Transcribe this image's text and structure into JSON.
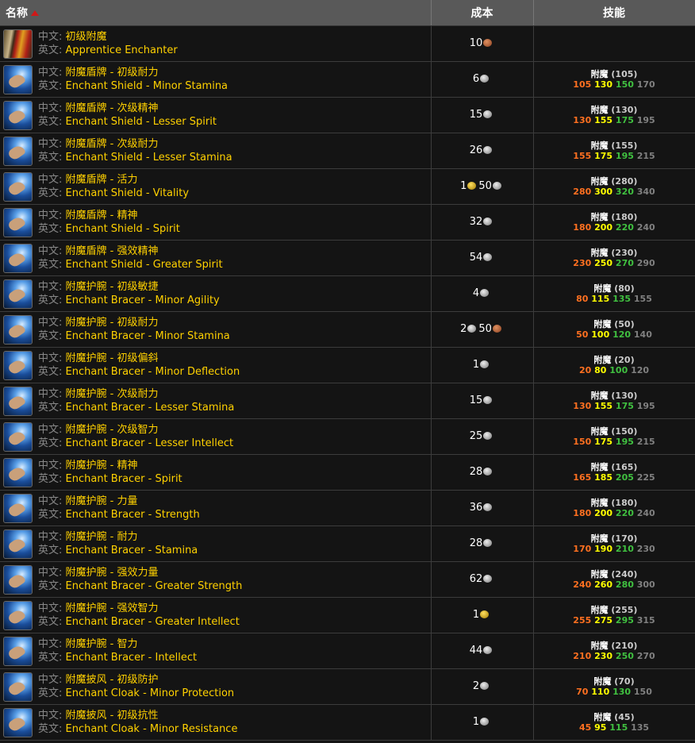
{
  "header": {
    "name": "名称",
    "cost": "成本",
    "skill": "技能"
  },
  "labels": {
    "cn": "中文:",
    "en": "英文:"
  },
  "coin_colors": {
    "copper": "#b05a30",
    "silver": "#aaaaaa",
    "gold": "#e0b020"
  },
  "skill_colors": {
    "orange": "#ff7020",
    "yellow": "#ffff00",
    "green": "#40c040",
    "gray": "#808080"
  },
  "rows": [
    {
      "icon": "apprentice-enchanter-icon",
      "cn": "初级附魔",
      "en": "Apprentice Enchanter",
      "cost": [
        {
          "n": "10",
          "coin": "copper"
        }
      ],
      "skill": null
    },
    {
      "icon": "enchant-hand-icon",
      "cn": "附魔盾牌 - 初级耐力",
      "en": "Enchant Shield - Minor Stamina",
      "cost": [
        {
          "n": "6",
          "coin": "silver"
        }
      ],
      "skill": {
        "name": "附魔",
        "req": "(105)",
        "lv": [
          "105",
          "130",
          "150",
          "170"
        ]
      }
    },
    {
      "icon": "enchant-hand-icon",
      "cn": "附魔盾牌 - 次级精神",
      "en": "Enchant Shield - Lesser Spirit",
      "cost": [
        {
          "n": "15",
          "coin": "silver"
        }
      ],
      "skill": {
        "name": "附魔",
        "req": "(130)",
        "lv": [
          "130",
          "155",
          "175",
          "195"
        ]
      }
    },
    {
      "icon": "enchant-hand-icon",
      "cn": "附魔盾牌 - 次级耐力",
      "en": "Enchant Shield - Lesser Stamina",
      "cost": [
        {
          "n": "26",
          "coin": "silver"
        }
      ],
      "skill": {
        "name": "附魔",
        "req": "(155)",
        "lv": [
          "155",
          "175",
          "195",
          "215"
        ]
      }
    },
    {
      "icon": "enchant-hand-icon",
      "cn": "附魔盾牌 - 活力",
      "en": "Enchant Shield - Vitality",
      "cost": [
        {
          "n": "1",
          "coin": "gold"
        },
        {
          "n": "50",
          "coin": "silver"
        }
      ],
      "skill": {
        "name": "附魔",
        "req": "(280)",
        "lv": [
          "280",
          "300",
          "320",
          "340"
        ]
      }
    },
    {
      "icon": "enchant-hand-icon",
      "cn": "附魔盾牌 - 精神",
      "en": "Enchant Shield - Spirit",
      "cost": [
        {
          "n": "32",
          "coin": "silver"
        }
      ],
      "skill": {
        "name": "附魔",
        "req": "(180)",
        "lv": [
          "180",
          "200",
          "220",
          "240"
        ]
      }
    },
    {
      "icon": "enchant-hand-icon",
      "cn": "附魔盾牌 - 强效精神",
      "en": "Enchant Shield - Greater Spirit",
      "cost": [
        {
          "n": "54",
          "coin": "silver"
        }
      ],
      "skill": {
        "name": "附魔",
        "req": "(230)",
        "lv": [
          "230",
          "250",
          "270",
          "290"
        ]
      }
    },
    {
      "icon": "enchant-hand-icon",
      "cn": "附魔护腕 - 初级敏捷",
      "en": "Enchant Bracer - Minor Agility",
      "cost": [
        {
          "n": "4",
          "coin": "silver"
        }
      ],
      "skill": {
        "name": "附魔",
        "req": "(80)",
        "lv": [
          "80",
          "115",
          "135",
          "155"
        ]
      }
    },
    {
      "icon": "enchant-hand-icon",
      "cn": "附魔护腕 - 初级耐力",
      "en": "Enchant Bracer - Minor Stamina",
      "cost": [
        {
          "n": "2",
          "coin": "silver"
        },
        {
          "n": "50",
          "coin": "copper"
        }
      ],
      "skill": {
        "name": "附魔",
        "req": "(50)",
        "lv": [
          "50",
          "100",
          "120",
          "140"
        ]
      }
    },
    {
      "icon": "enchant-hand-icon",
      "cn": "附魔护腕 - 初级偏斜",
      "en": "Enchant Bracer - Minor Deflection",
      "cost": [
        {
          "n": "1",
          "coin": "silver"
        }
      ],
      "skill": {
        "name": "附魔",
        "req": "(20)",
        "lv": [
          "20",
          "80",
          "100",
          "120"
        ]
      }
    },
    {
      "icon": "enchant-hand-icon",
      "cn": "附魔护腕 - 次级耐力",
      "en": "Enchant Bracer - Lesser Stamina",
      "cost": [
        {
          "n": "15",
          "coin": "silver"
        }
      ],
      "skill": {
        "name": "附魔",
        "req": "(130)",
        "lv": [
          "130",
          "155",
          "175",
          "195"
        ]
      }
    },
    {
      "icon": "enchant-hand-icon",
      "cn": "附魔护腕 - 次级智力",
      "en": "Enchant Bracer - Lesser Intellect",
      "cost": [
        {
          "n": "25",
          "coin": "silver"
        }
      ],
      "skill": {
        "name": "附魔",
        "req": "(150)",
        "lv": [
          "150",
          "175",
          "195",
          "215"
        ]
      }
    },
    {
      "icon": "enchant-hand-icon",
      "cn": "附魔护腕 - 精神",
      "en": "Enchant Bracer - Spirit",
      "cost": [
        {
          "n": "28",
          "coin": "silver"
        }
      ],
      "skill": {
        "name": "附魔",
        "req": "(165)",
        "lv": [
          "165",
          "185",
          "205",
          "225"
        ]
      }
    },
    {
      "icon": "enchant-hand-icon",
      "cn": "附魔护腕 - 力量",
      "en": "Enchant Bracer - Strength",
      "cost": [
        {
          "n": "36",
          "coin": "silver"
        }
      ],
      "skill": {
        "name": "附魔",
        "req": "(180)",
        "lv": [
          "180",
          "200",
          "220",
          "240"
        ]
      }
    },
    {
      "icon": "enchant-hand-icon",
      "cn": "附魔护腕 - 耐力",
      "en": "Enchant Bracer - Stamina",
      "cost": [
        {
          "n": "28",
          "coin": "silver"
        }
      ],
      "skill": {
        "name": "附魔",
        "req": "(170)",
        "lv": [
          "170",
          "190",
          "210",
          "230"
        ]
      }
    },
    {
      "icon": "enchant-hand-icon",
      "cn": "附魔护腕 - 强效力量",
      "en": "Enchant Bracer - Greater Strength",
      "cost": [
        {
          "n": "62",
          "coin": "silver"
        }
      ],
      "skill": {
        "name": "附魔",
        "req": "(240)",
        "lv": [
          "240",
          "260",
          "280",
          "300"
        ]
      }
    },
    {
      "icon": "enchant-hand-icon",
      "cn": "附魔护腕 - 强效智力",
      "en": "Enchant Bracer - Greater Intellect",
      "cost": [
        {
          "n": "1",
          "coin": "gold"
        }
      ],
      "skill": {
        "name": "附魔",
        "req": "(255)",
        "lv": [
          "255",
          "275",
          "295",
          "315"
        ]
      }
    },
    {
      "icon": "enchant-hand-icon",
      "cn": "附魔护腕 - 智力",
      "en": "Enchant Bracer - Intellect",
      "cost": [
        {
          "n": "44",
          "coin": "silver"
        }
      ],
      "skill": {
        "name": "附魔",
        "req": "(210)",
        "lv": [
          "210",
          "230",
          "250",
          "270"
        ]
      }
    },
    {
      "icon": "enchant-hand-icon",
      "cn": "附魔披风 - 初级防护",
      "en": "Enchant Cloak - Minor Protection",
      "cost": [
        {
          "n": "2",
          "coin": "silver"
        }
      ],
      "skill": {
        "name": "附魔",
        "req": "(70)",
        "lv": [
          "70",
          "110",
          "130",
          "150"
        ]
      }
    },
    {
      "icon": "enchant-hand-icon",
      "cn": "附魔披风 - 初级抗性",
      "en": "Enchant Cloak - Minor Resistance",
      "cost": [
        {
          "n": "1",
          "coin": "silver"
        }
      ],
      "skill": {
        "name": "附魔",
        "req": "(45)",
        "lv": [
          "45",
          "95",
          "115",
          "135"
        ]
      }
    }
  ]
}
